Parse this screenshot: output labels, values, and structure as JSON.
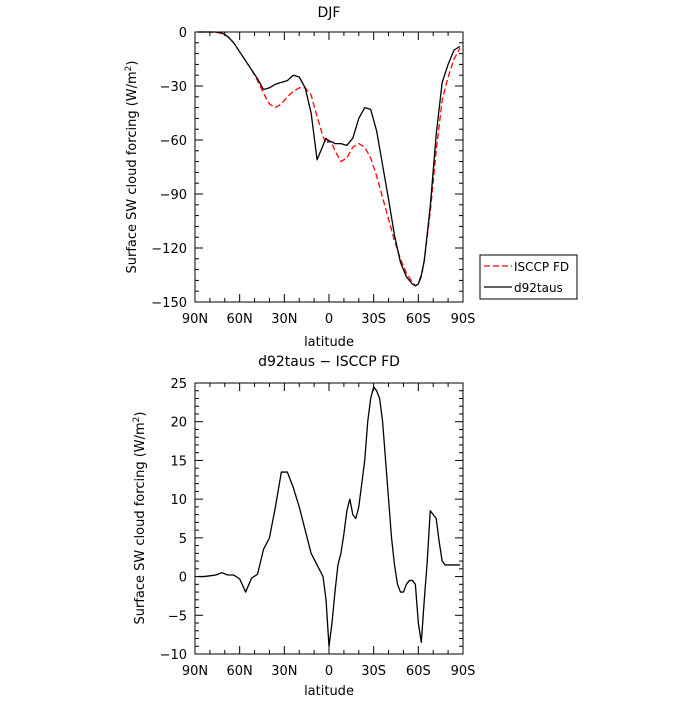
{
  "chart_data": [
    {
      "type": "line",
      "title": "DJF",
      "xlabel": "latitude",
      "ylabel": "Surface SW cloud forcing (W/m",
      "ylabel_sup": "2",
      "ylabel_tail": ")",
      "x_domain": [
        90,
        -90
      ],
      "xticks": [
        {
          "value": 90,
          "label": "90N"
        },
        {
          "value": 60,
          "label": "60N"
        },
        {
          "value": 30,
          "label": "30N"
        },
        {
          "value": 0,
          "label": "0"
        },
        {
          "value": -30,
          "label": "30S"
        },
        {
          "value": -60,
          "label": "60S"
        },
        {
          "value": -90,
          "label": "90S"
        }
      ],
      "ylim": [
        -150,
        0
      ],
      "yticks": [
        {
          "value": 0,
          "label": "0"
        },
        {
          "value": -30,
          "label": "−30"
        },
        {
          "value": -60,
          "label": "−60"
        },
        {
          "value": -90,
          "label": "−90"
        },
        {
          "value": -120,
          "label": "−120"
        },
        {
          "value": -150,
          "label": "−150"
        }
      ],
      "legend_position": "right",
      "series": [
        {
          "name": "ISCCP FD",
          "color": "#ff0000",
          "dash": "dashed",
          "x": [
            88,
            84,
            80,
            76,
            72,
            68,
            64,
            60,
            56,
            52,
            48,
            44,
            40,
            36,
            32,
            28,
            24,
            20,
            16,
            12,
            8,
            4,
            2,
            0,
            -2,
            -4,
            -8,
            -12,
            -16,
            -20,
            -24,
            -28,
            -32,
            -36,
            -40,
            -44,
            -48,
            -52,
            -56,
            -58,
            -60,
            -62,
            -64,
            -68,
            -72,
            -76,
            -80,
            -84,
            -88
          ],
          "y": [
            0,
            0,
            0,
            -0.2,
            -0.8,
            -2.5,
            -6,
            -11,
            -16,
            -21,
            -27,
            -34,
            -40,
            -42,
            -40,
            -36,
            -33,
            -31,
            -31,
            -35,
            -47,
            -58,
            -62,
            -60,
            -62,
            -66,
            -72,
            -70,
            -64,
            -62,
            -64,
            -70,
            -80,
            -92,
            -104,
            -116,
            -126,
            -134,
            -139,
            -141,
            -140,
            -136,
            -127,
            -100,
            -66,
            -38,
            -25,
            -15,
            -9
          ]
        },
        {
          "name": "d92taus",
          "color": "#000000",
          "dash": "solid",
          "x": [
            88,
            84,
            80,
            76,
            72,
            68,
            64,
            60,
            56,
            52,
            48,
            44,
            40,
            36,
            32,
            28,
            24,
            20,
            16,
            12,
            8,
            4,
            2,
            0,
            -2,
            -4,
            -8,
            -12,
            -16,
            -20,
            -24,
            -28,
            -32,
            -36,
            -40,
            -44,
            -48,
            -52,
            -56,
            -58,
            -60,
            -62,
            -64,
            -68,
            -72,
            -76,
            -80,
            -84,
            -88
          ],
          "y": [
            0,
            0,
            0,
            0,
            -0.5,
            -2.5,
            -6,
            -11,
            -16,
            -21,
            -26,
            -32,
            -31,
            -29,
            -28,
            -27,
            -24,
            -25,
            -31,
            -45,
            -71,
            -63,
            -59,
            -61,
            -61,
            -62,
            -62,
            -63,
            -59,
            -48,
            -42,
            -43,
            -55,
            -74,
            -93,
            -113,
            -128,
            -136,
            -140,
            -141,
            -140,
            -135,
            -127,
            -97,
            -57,
            -28,
            -18,
            -10,
            -8
          ]
        }
      ]
    },
    {
      "type": "line",
      "title": "d92taus − ISCCP FD",
      "xlabel": "latitude",
      "ylabel": "Surface SW cloud forcing (W/m",
      "ylabel_sup": "2",
      "ylabel_tail": ")",
      "x_domain": [
        90,
        -90
      ],
      "xticks": [
        {
          "value": 90,
          "label": "90N"
        },
        {
          "value": 60,
          "label": "60N"
        },
        {
          "value": 30,
          "label": "30N"
        },
        {
          "value": 0,
          "label": "0"
        },
        {
          "value": -30,
          "label": "30S"
        },
        {
          "value": -60,
          "label": "60S"
        },
        {
          "value": -90,
          "label": "90S"
        }
      ],
      "ylim": [
        -10,
        25
      ],
      "yticks": [
        {
          "value": 25,
          "label": "25"
        },
        {
          "value": 20,
          "label": "20"
        },
        {
          "value": 15,
          "label": "15"
        },
        {
          "value": 10,
          "label": "10"
        },
        {
          "value": 5,
          "label": "5"
        },
        {
          "value": 0,
          "label": "0"
        },
        {
          "value": -5,
          "label": "−5"
        },
        {
          "value": -10,
          "label": "−10"
        }
      ],
      "series": [
        {
          "name": "",
          "color": "#000000",
          "dash": "solid",
          "x": [
            88,
            84,
            80,
            76,
            72,
            68,
            64,
            60,
            56,
            52,
            48,
            44,
            40,
            36,
            32,
            28,
            24,
            20,
            16,
            12,
            8,
            4,
            2,
            0,
            -2,
            -4,
            -6,
            -8,
            -10,
            -12,
            -14,
            -16,
            -18,
            -20,
            -22,
            -24,
            -26,
            -28,
            -30,
            -32,
            -34,
            -36,
            -38,
            -40,
            -42,
            -44,
            -46,
            -48,
            -50,
            -52,
            -54,
            -56,
            -58,
            -60,
            -62,
            -64,
            -66,
            -68,
            -70,
            -72,
            -74,
            -76,
            -78,
            -80,
            -82,
            -84,
            -86,
            -88
          ],
          "y": [
            0,
            0,
            0.1,
            0.2,
            0.5,
            0.2,
            0.2,
            -0.3,
            -2,
            -0.2,
            0.3,
            3.5,
            5,
            9,
            13.5,
            13.5,
            11.5,
            9,
            6,
            3,
            1.5,
            0,
            -3,
            -9,
            -6,
            -2,
            1.5,
            3,
            5.5,
            8.5,
            10,
            8,
            7.5,
            9,
            12,
            15,
            20,
            23,
            24.5,
            24,
            23,
            20,
            15,
            10,
            5,
            1.5,
            -1,
            -2,
            -2,
            -1,
            -0.5,
            -0.5,
            -1,
            -6,
            -8.5,
            -3,
            2,
            8.5,
            8,
            7.5,
            4.5,
            2,
            1.5,
            1.5,
            1.5,
            1.5,
            1.5,
            1.5
          ]
        }
      ]
    }
  ]
}
